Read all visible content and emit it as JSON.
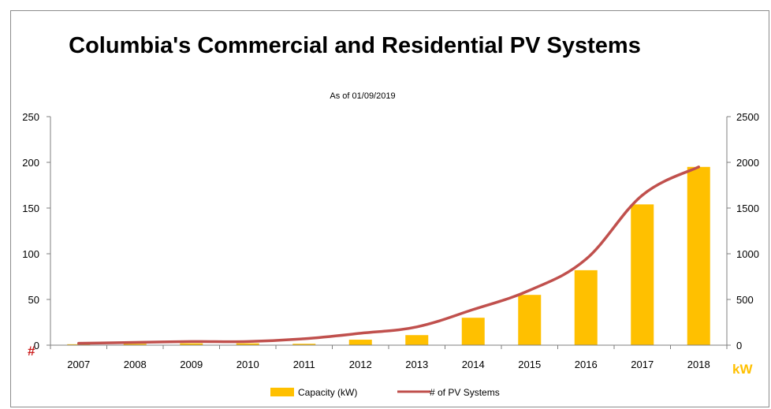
{
  "chart_data": {
    "type": "bar+line",
    "title": "Columbia's Commercial and Residential PV Systems",
    "subtitle": "As of 01/09/2019",
    "categories": [
      "2007",
      "2008",
      "2009",
      "2010",
      "2011",
      "2012",
      "2013",
      "2014",
      "2015",
      "2016",
      "2017",
      "2018"
    ],
    "series": [
      {
        "name": "Capacity (kW)",
        "type": "bar",
        "axis": "right",
        "color": "#ffc000",
        "values": [
          10,
          15,
          20,
          20,
          15,
          60,
          110,
          300,
          550,
          820,
          1540,
          1950
        ]
      },
      {
        "name": "# of PV Systems",
        "type": "line",
        "axis": "left",
        "color": "#c0504d",
        "values": [
          2,
          3,
          4,
          4,
          7,
          13,
          20,
          39,
          60,
          94,
          164,
          195
        ]
      }
    ],
    "y_left": {
      "label": "#",
      "ticks": [
        "0",
        "50",
        "100",
        "150",
        "200",
        "250"
      ],
      "range": [
        0,
        250
      ]
    },
    "y_right": {
      "label": "kW",
      "ticks": [
        "0",
        "500",
        "1000",
        "1500",
        "2000",
        "2500"
      ],
      "range": [
        0,
        2500
      ]
    },
    "grid": false,
    "legend": "bottom"
  }
}
